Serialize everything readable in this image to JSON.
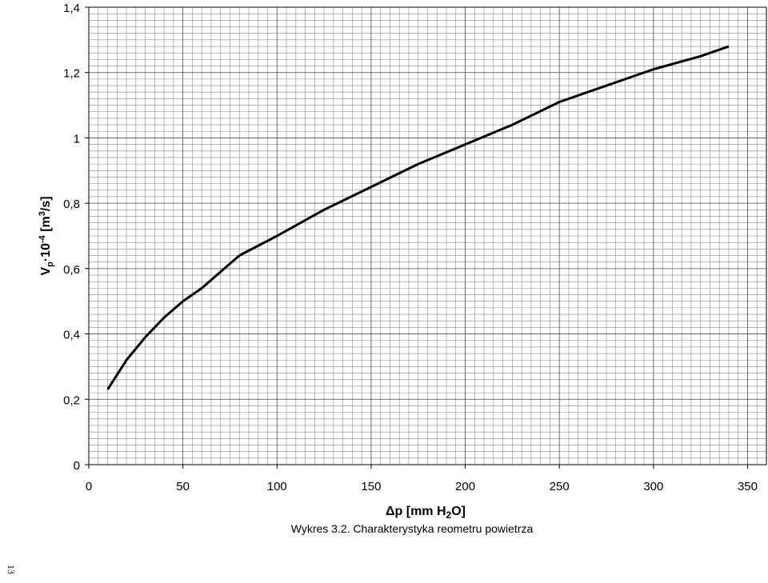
{
  "chart_data": {
    "type": "line",
    "xlabel": {
      "text": "Δp [mm H",
      "sub": "2",
      "end": "O]"
    },
    "ylabel": {
      "v": "V",
      "sub": "p",
      "mid": "·10",
      "sup": "-4",
      "unit": " [m",
      "unit_sup": "3",
      "end": "/s]"
    },
    "caption": "Wykres 3.2. Charakterystyka reometru powietrza",
    "page_number": "13",
    "x": [
      10,
      20,
      30,
      40,
      50,
      60,
      80,
      100,
      125,
      150,
      175,
      200,
      225,
      250,
      275,
      300,
      325,
      340
    ],
    "series": [
      {
        "color": "#000000",
        "values": [
          0.23,
          0.32,
          0.39,
          0.45,
          0.5,
          0.54,
          0.64,
          0.7,
          0.78,
          0.85,
          0.92,
          0.98,
          1.04,
          1.11,
          1.16,
          1.21,
          1.25,
          1.28
        ]
      }
    ],
    "xlim": [
      0,
      360
    ],
    "xticks": [
      0,
      50,
      100,
      150,
      200,
      250,
      300,
      350
    ],
    "ylim": [
      0,
      1.4
    ],
    "yticks": [
      0,
      {
        "value": 0.2,
        "label": "0,2"
      },
      {
        "value": 0.4,
        "label": "0,4"
      },
      {
        "value": 0.6,
        "label": "0,6"
      },
      {
        "value": 0.8,
        "label": "0,8"
      },
      1,
      {
        "value": 1.2,
        "label": "1,2"
      },
      {
        "value": 1.4,
        "label": "1,4"
      }
    ],
    "grid": true,
    "minor_grid": {
      "x": 5,
      "y": 0.02
    }
  }
}
